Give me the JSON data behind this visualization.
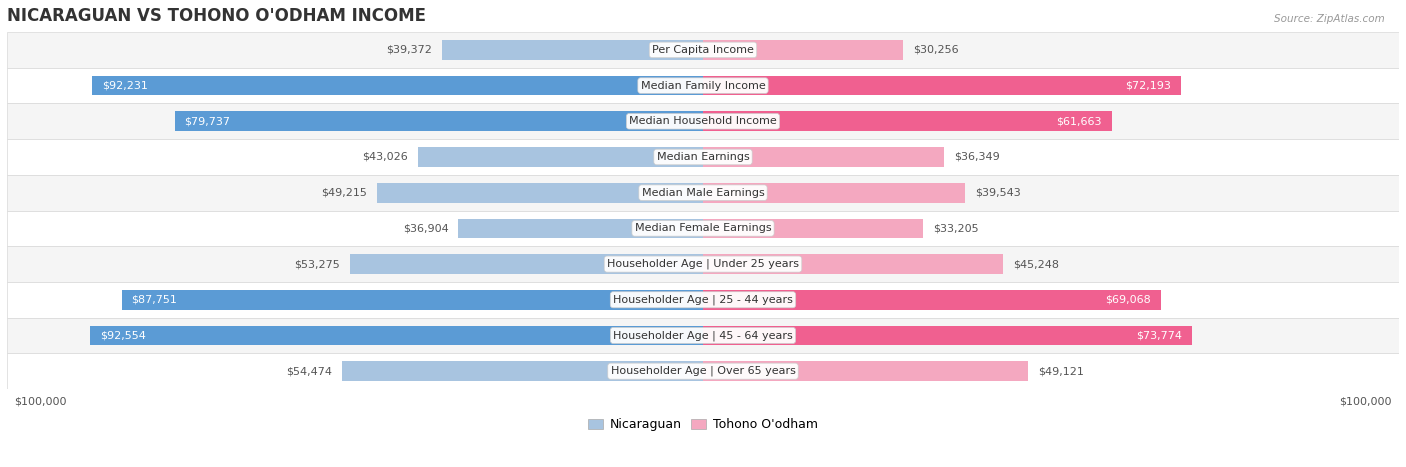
{
  "title": "NICARAGUAN VS TOHONO O'ODHAM INCOME",
  "source": "Source: ZipAtlas.com",
  "categories": [
    "Per Capita Income",
    "Median Family Income",
    "Median Household Income",
    "Median Earnings",
    "Median Male Earnings",
    "Median Female Earnings",
    "Householder Age | Under 25 years",
    "Householder Age | 25 - 44 years",
    "Householder Age | 45 - 64 years",
    "Householder Age | Over 65 years"
  ],
  "nicaraguan_values": [
    39372,
    92231,
    79737,
    43026,
    49215,
    36904,
    53275,
    87751,
    92554,
    54474
  ],
  "tohono_values": [
    30256,
    72193,
    61663,
    36349,
    39543,
    33205,
    45248,
    69068,
    73774,
    49121
  ],
  "nicaraguan_labels": [
    "$39,372",
    "$92,231",
    "$79,737",
    "$43,026",
    "$49,215",
    "$36,904",
    "$53,275",
    "$87,751",
    "$92,554",
    "$54,474"
  ],
  "tohono_labels": [
    "$30,256",
    "$72,193",
    "$61,663",
    "$36,349",
    "$39,543",
    "$33,205",
    "$45,248",
    "$69,068",
    "$73,774",
    "$49,121"
  ],
  "max_value": 100000,
  "nicaraguan_color_light": "#a8c4e0",
  "nicaraguan_color_dark": "#5b9bd5",
  "tohono_color_light": "#f4a8c0",
  "tohono_color_dark": "#f06090",
  "nicaraguan_label_threshold": 75000,
  "tohono_label_threshold": 60000,
  "bg_row_odd": "#f5f5f5",
  "bg_row_even": "#ffffff",
  "row_border": "#d8d8d8",
  "title_fontsize": 12,
  "label_fontsize": 8,
  "category_fontsize": 8,
  "axis_fontsize": 8,
  "legend_fontsize": 9,
  "bar_height": 0.55
}
